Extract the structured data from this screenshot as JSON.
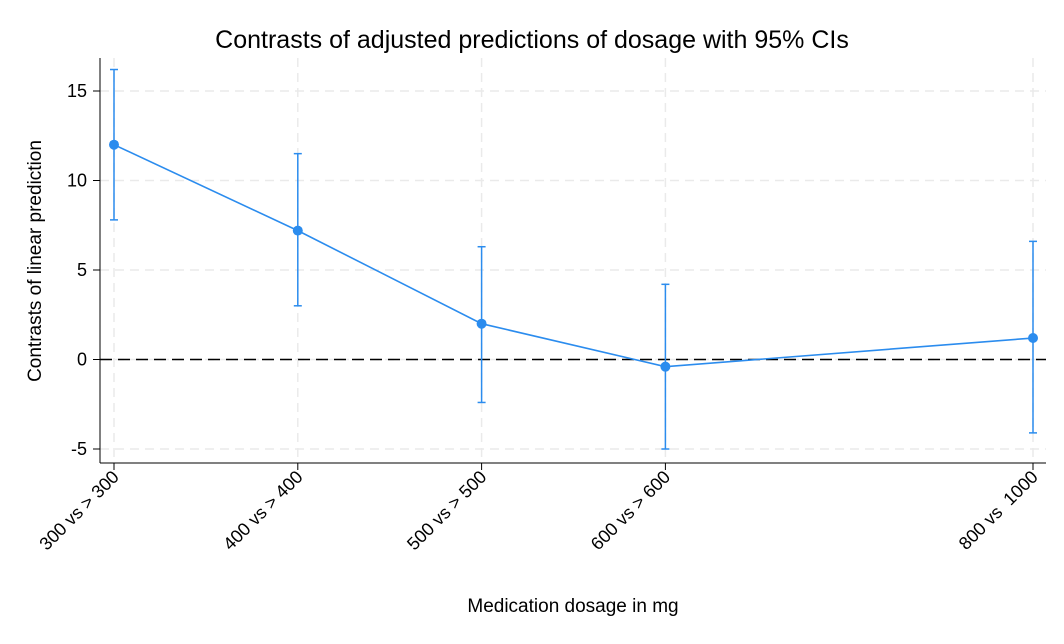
{
  "chart_data": {
    "type": "line",
    "title": "Contrasts of adjusted predictions of dosage with 95% CIs",
    "xlabel": "Medication dosage in mg",
    "ylabel": "Contrasts of linear prediction",
    "x": [
      300,
      400,
      500,
      600,
      800
    ],
    "categories": [
      "300 vs > 300",
      "400 vs > 400",
      "500 vs > 500",
      "600 vs > 600",
      "800 vs  1000"
    ],
    "yticks": [
      -5,
      0,
      5,
      10,
      15
    ],
    "ylim": [
      -5.8,
      16.8
    ],
    "grid": true,
    "reference_line": 0,
    "series": [
      {
        "values": [
          12.0,
          7.2,
          2.0,
          -0.4,
          1.2
        ],
        "ci_lower": [
          7.8,
          3.0,
          -2.4,
          -5.0,
          -4.1
        ],
        "ci_upper": [
          16.2,
          11.5,
          6.3,
          4.2,
          6.6
        ],
        "color": "#2b8cee"
      }
    ]
  }
}
